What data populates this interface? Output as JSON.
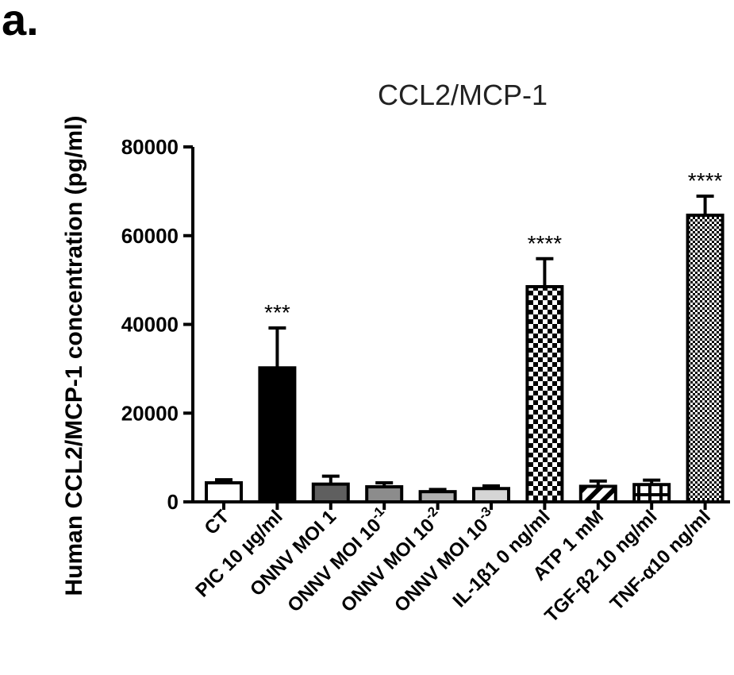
{
  "panel_label": "a.",
  "chart_data": {
    "type": "bar",
    "title": "CCL2/MCP-1",
    "xlabel": "",
    "ylabel": "Human CCL2/MCP-1 concentration (pg/ml)",
    "ylim": [
      0,
      80000
    ],
    "yticks": [
      "0",
      "20000",
      "40000",
      "60000",
      "80000"
    ],
    "grid": false,
    "categories": [
      {
        "label": "CT"
      },
      {
        "label": "PIC 10 µg/ml"
      },
      {
        "label": "ONNV MOI 1"
      },
      {
        "label": "ONNV MOI 10",
        "sup": "-1"
      },
      {
        "label": "ONNV MOI 10",
        "sup": "-2"
      },
      {
        "label": "ONNV MOI 10",
        "sup": "-3"
      },
      {
        "label": "IL-1β1 0 ng/ml"
      },
      {
        "label": "ATP 1 mM"
      },
      {
        "label": "TGF-β2 10 ng/ml"
      },
      {
        "label": "TNF-α10 ng/ml"
      }
    ],
    "values": [
      4300,
      30200,
      4000,
      3400,
      2300,
      3000,
      48500,
      3500,
      3900,
      64600
    ],
    "errors": [
      700,
      9000,
      1800,
      900,
      500,
      600,
      6300,
      1200,
      1000,
      4300
    ],
    "significance": [
      "",
      "***",
      "",
      "",
      "",
      "",
      "****",
      "",
      "",
      "****"
    ],
    "fills": [
      {
        "kind": "solid",
        "color": "#ffffff"
      },
      {
        "kind": "solid",
        "color": "#000000"
      },
      {
        "kind": "solid",
        "color": "#5f5f5f"
      },
      {
        "kind": "solid",
        "color": "#8c8c8c"
      },
      {
        "kind": "solid",
        "color": "#b0b0b0"
      },
      {
        "kind": "solid",
        "color": "#d5d5d5"
      },
      {
        "kind": "checker-large"
      },
      {
        "kind": "diagonal"
      },
      {
        "kind": "cross"
      },
      {
        "kind": "checker-small"
      }
    ]
  }
}
